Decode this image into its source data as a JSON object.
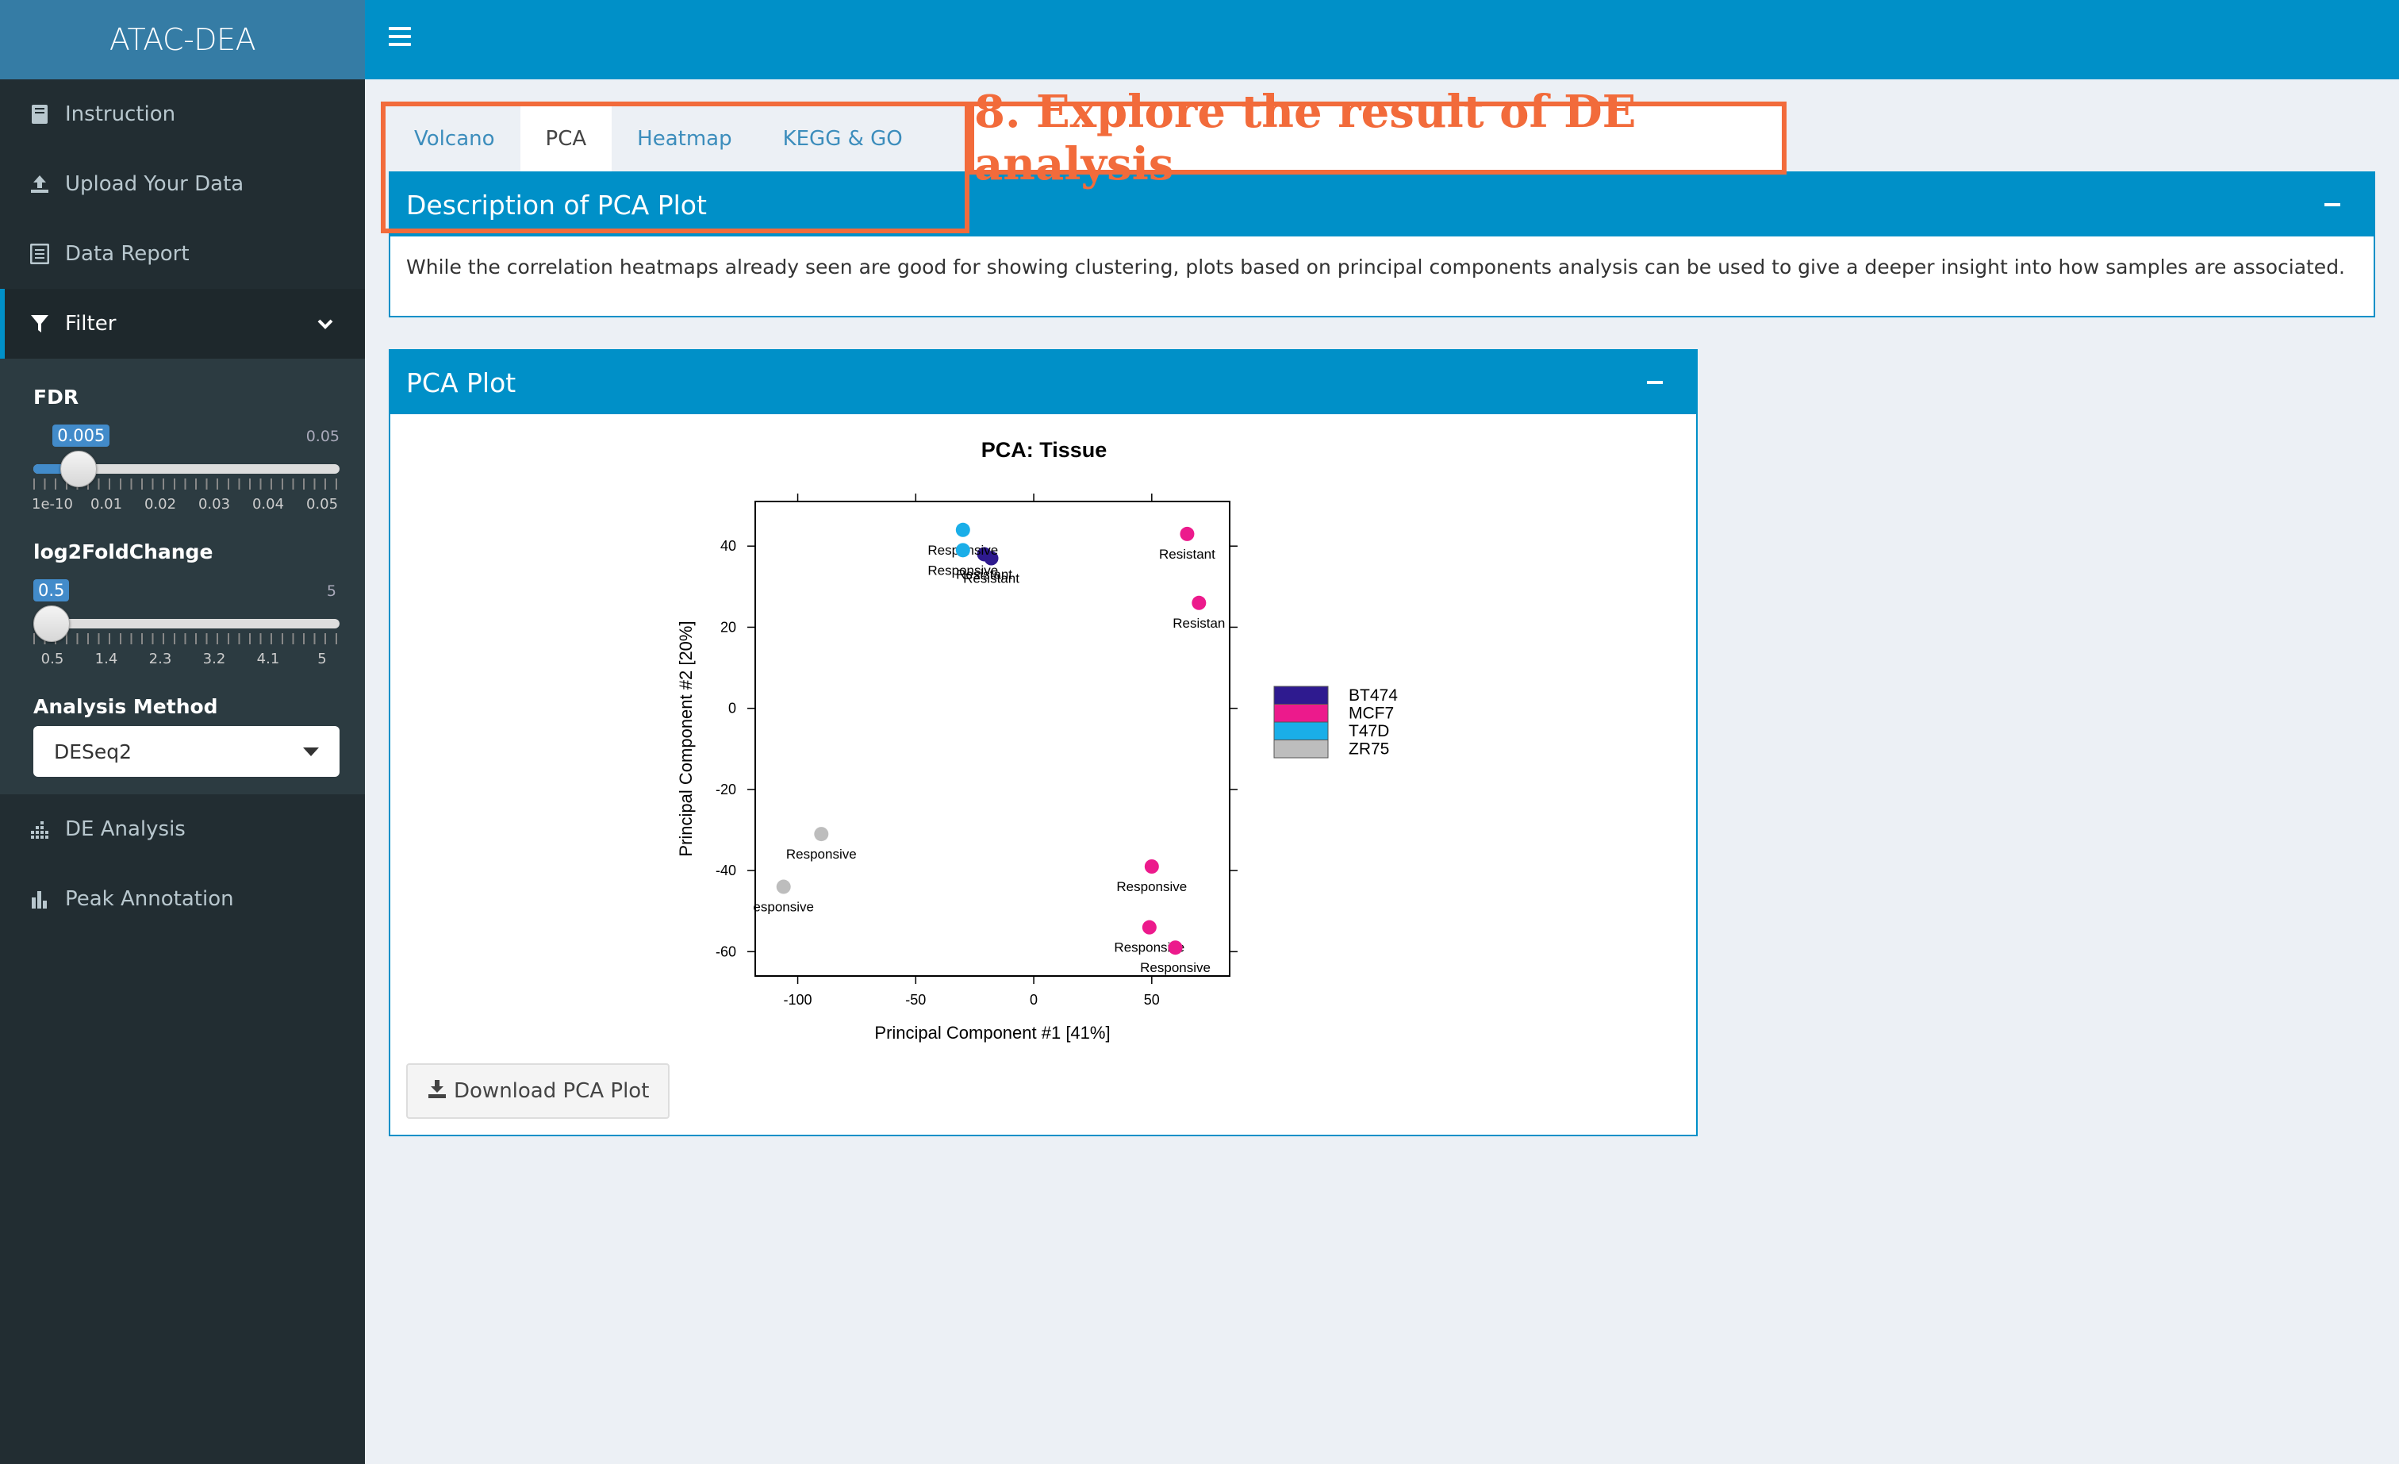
{
  "app": {
    "title": "ATAC-DEA"
  },
  "sidebar": {
    "items": [
      {
        "label": "Instruction",
        "icon": "book-icon"
      },
      {
        "label": "Upload Your Data",
        "icon": "upload-icon"
      },
      {
        "label": "Data Report",
        "icon": "report-icon"
      },
      {
        "label": "Filter",
        "icon": "filter-icon"
      },
      {
        "label": "DE Analysis",
        "icon": "bar-dots-icon"
      },
      {
        "label": "Peak Annotation",
        "icon": "bar-chart-icon"
      }
    ],
    "filter": {
      "fdr": {
        "label": "FDR",
        "value": "0.005",
        "max": "0.05",
        "ticks": [
          "1e-10",
          "0.01",
          "0.02",
          "0.03",
          "0.04",
          "0.05"
        ],
        "fraction": 0.1
      },
      "lfc": {
        "label": "log2FoldChange",
        "value": "0.5",
        "max": "5",
        "ticks": [
          "0.5",
          "1.4",
          "2.3",
          "3.2",
          "4.1",
          "5"
        ],
        "fraction": 0.0
      },
      "method": {
        "label": "Analysis Method",
        "selected": "DESeq2"
      }
    }
  },
  "tabs": [
    "Volcano",
    "PCA",
    "Heatmap",
    "KEGG & GO"
  ],
  "annotation": {
    "title": "8. Explore the result of DE analysis"
  },
  "description_box": {
    "title": "Description of PCA Plot",
    "text": "While the correlation heatmaps already seen are good for showing clustering, plots based on principal components analysis can be used to give a deeper insight into how samples are associated."
  },
  "pca_box": {
    "title": "PCA Plot",
    "download_label": "Download PCA Plot"
  },
  "chart_data": {
    "type": "scatter",
    "title": "PCA: Tissue",
    "xlabel": "Principal Component #1 [41%]",
    "ylabel": "Principal Component #2 [20%]",
    "xlim": [
      -118,
      83
    ],
    "ylim": [
      -66,
      51
    ],
    "xticks": [
      -100,
      -50,
      0,
      50
    ],
    "yticks": [
      -60,
      -40,
      -20,
      0,
      20,
      40
    ],
    "legend_position": "right",
    "series": [
      {
        "name": "BT474",
        "color": "#2e1a8f",
        "points": [
          {
            "x": -21,
            "y": 38,
            "label": "Resistant"
          },
          {
            "x": -18,
            "y": 37,
            "label": "Resistant"
          }
        ]
      },
      {
        "name": "MCF7",
        "color": "#ec1a8c",
        "points": [
          {
            "x": 65,
            "y": 43,
            "label": "Resistant"
          },
          {
            "x": 70,
            "y": 26,
            "label": "Resistan"
          },
          {
            "x": 50,
            "y": -39,
            "label": "Responsive"
          },
          {
            "x": 49,
            "y": -54,
            "label": "Responsive"
          },
          {
            "x": 60,
            "y": -59,
            "label": "Responsive"
          }
        ]
      },
      {
        "name": "T47D",
        "color": "#1aaee8",
        "points": [
          {
            "x": -30,
            "y": 44,
            "label": "Responsive"
          },
          {
            "x": -30,
            "y": 39,
            "label": "Responsive"
          }
        ]
      },
      {
        "name": "ZR75",
        "color": "#bdbdbd",
        "points": [
          {
            "x": -90,
            "y": -31,
            "label": "Responsive"
          },
          {
            "x": -106,
            "y": -44,
            "label": "esponsive"
          }
        ]
      }
    ]
  },
  "colors": {
    "primary": "#0090c8",
    "sidebar": "#222d32",
    "annotation": "#f26b3b"
  }
}
